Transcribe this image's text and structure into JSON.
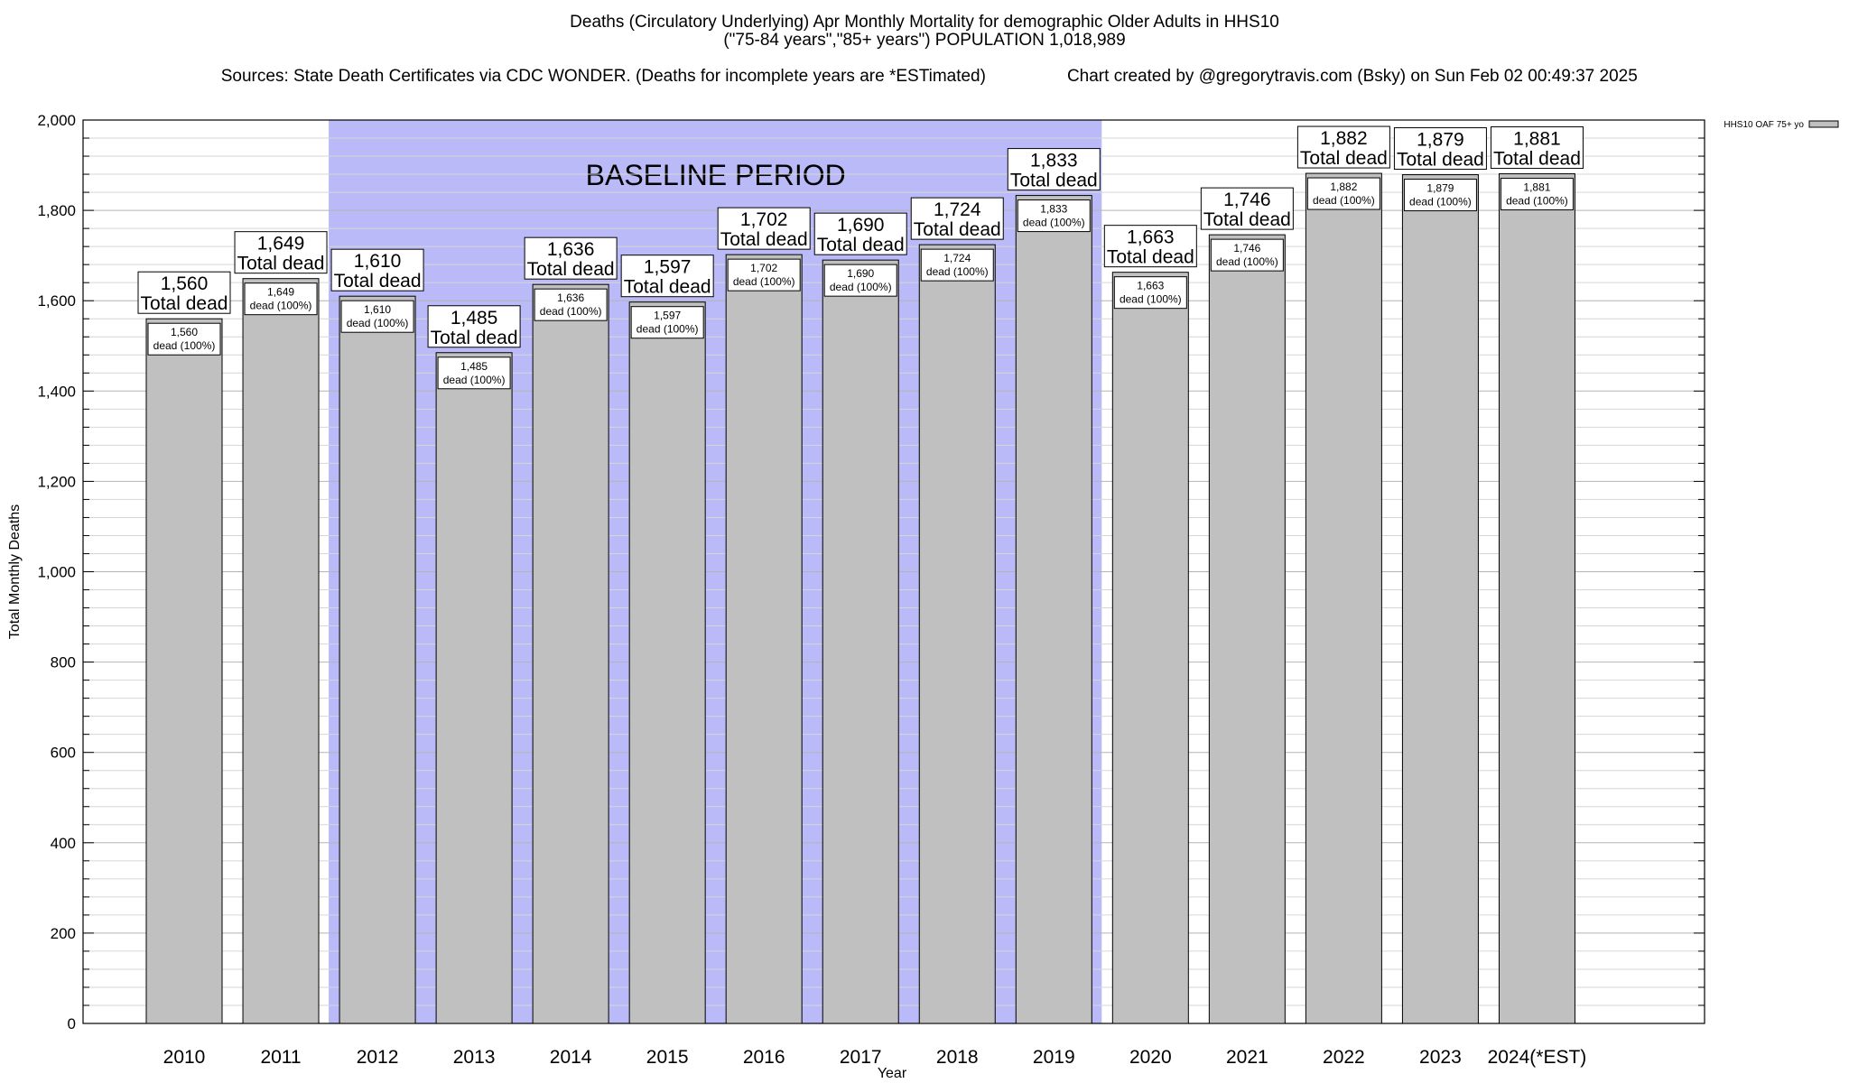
{
  "header": {
    "title_line1": "Deaths (Circulatory Underlying) Apr Monthly Mortality for demographic Older Adults in HHS10",
    "title_line2": "(\"75-84 years\",\"85+ years\") POPULATION 1,018,989",
    "sources": "Sources: State Death Certificates via CDC WONDER. (Deaths for incomplete years are *ESTimated)",
    "credit": "Chart created by @gregorytravis.com (Bsky) on Sun Feb 02 00:49:37 2025"
  },
  "chart_data": {
    "type": "bar",
    "title": "Deaths (Circulatory Underlying) Apr Monthly Mortality for demographic Older Adults in HHS10",
    "xlabel": "Year",
    "ylabel": "Total Monthly Deaths",
    "ylim": [
      0,
      2000
    ],
    "yticks": [
      0,
      200,
      400,
      600,
      800,
      1000,
      1200,
      1400,
      1600,
      1800,
      2000
    ],
    "ytick_labels": [
      "0",
      "200",
      "400",
      "600",
      "800",
      "1,000",
      "1,200",
      "1,400",
      "1,600",
      "1,800",
      "2,000"
    ],
    "grid": true,
    "legend_position": "top-right",
    "categories": [
      "2010",
      "2011",
      "2012",
      "2013",
      "2014",
      "2015",
      "2016",
      "2017",
      "2018",
      "2019",
      "2020",
      "2021",
      "2022",
      "2023",
      "2024(*EST)"
    ],
    "series": [
      {
        "name": "HHS10 OAF 75+ yo",
        "color": "#c0c0c0",
        "values": [
          1560,
          1649,
          1610,
          1485,
          1636,
          1597,
          1702,
          1690,
          1724,
          1833,
          1663,
          1746,
          1882,
          1879,
          1881
        ],
        "value_labels": [
          "1,560",
          "1,649",
          "1,610",
          "1,485",
          "1,636",
          "1,597",
          "1,702",
          "1,690",
          "1,724",
          "1,833",
          "1,663",
          "1,746",
          "1,882",
          "1,879",
          "1,881"
        ]
      }
    ],
    "total_label_suffix": "Total dead",
    "inner_label_suffix": "dead (100%)",
    "baseline": {
      "label": "BASELINE PERIOD",
      "start": "2012",
      "end": "2019",
      "color": "#babaf8"
    }
  }
}
